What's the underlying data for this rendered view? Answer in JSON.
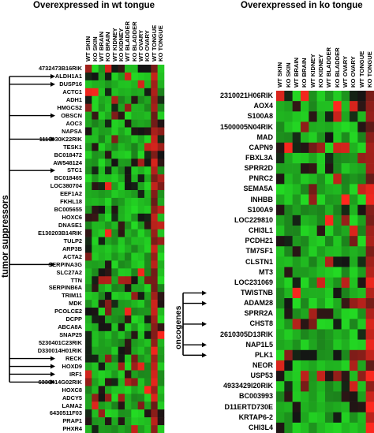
{
  "left_panel": {
    "title": "Overexpressed in wt tongue",
    "group_label": "tumor suppressors",
    "columns": [
      "WT SKIN",
      "KO SKIN",
      "WT BRAIN",
      "KO BRAIN",
      "WT KIDNEY",
      "KO KIDNEY",
      "WT BLADDER",
      "KO BLADDER",
      "WT OVARY",
      "KO OVARY",
      "WT TONGUE",
      "KO TONGUE"
    ],
    "genes": [
      "4732473B16RIK",
      "ALDH1A1",
      "DUSP16",
      "ACTC1",
      "ADH1",
      "HMGCS2",
      "OBSCN",
      "AOC3",
      "NAPSA",
      "1110030K22RIK",
      "TESK1",
      "BC018472",
      "AW548124",
      "STC1",
      "BC018465",
      "LOC380704",
      "EEF1A2",
      "FKHL18",
      "BC005655",
      "HOXC6",
      "DNASE1",
      "E130203B14RIK",
      "TULP2",
      "ARP3B",
      "ACTA2",
      "SERPINA3G",
      "SLC27A2",
      "TTN",
      "SERPINB6A",
      "TRIM11",
      "MDK",
      "PCOLCE2",
      "DCPP",
      "ABCA8A",
      "SNAP25",
      "5230401C23RIK",
      "D330014H01RIK",
      "RECK",
      "HOXD9",
      "IRF1",
      "6330414G02RIK",
      "HOXC8",
      "ADCY5",
      "LAMA2",
      "6430511F03",
      "PRAP1",
      "PHXR4"
    ],
    "arrow_targets": [
      "ALDH1A1",
      "DUSP16",
      "OBSCN",
      "1110030K22RIK",
      "STC1",
      "SERPINA3G",
      "RECK",
      "HOXD9",
      "IRF1",
      "6330414G02RIK"
    ]
  },
  "right_panel": {
    "title": "Overexpressed in ko tongue",
    "group_label": "oncogenes",
    "columns": [
      "WT SKIN",
      "KO SKIN",
      "WT BRAIN",
      "KO BRAIN",
      "WT KIDNEY",
      "KO KIDNEY",
      "WT BLADDER",
      "KO BLADDER",
      "WT OVARY",
      "KO OVARY",
      "WT TONGUE",
      "KO TONGUE"
    ],
    "genes": [
      "2310021H06RIK",
      "AOX4",
      "S100A8",
      "1500005N04RIK",
      "MAD",
      "CAPN9",
      "FBXL3A",
      "SPRR2D",
      "PNRC2",
      "SEMA5A",
      "INHBB",
      "S100A9",
      "LOC229810",
      "CHI3L1",
      "PCDH21",
      "TM7SF1",
      "CLSTN1",
      "MT3",
      "LOC231069",
      "TWISTNB",
      "ADAM28",
      "SPRR2A",
      "CHST8",
      "2610305D13RIK",
      "NAP1L5",
      "PLK1",
      "NEOR",
      "USP53",
      "4933429I20RIK",
      "BC003993",
      "D11ERTD730E",
      "KRTAP6-2",
      "CHI3L4"
    ],
    "arrow_targets": [
      "TWISTNB",
      "ADAM28",
      "CHST8",
      "NAP1L5",
      "PLK1"
    ]
  },
  "colors": {
    "high": "#ff2a2a",
    "mid": "#0c0c0c",
    "low": "#25d625"
  }
}
